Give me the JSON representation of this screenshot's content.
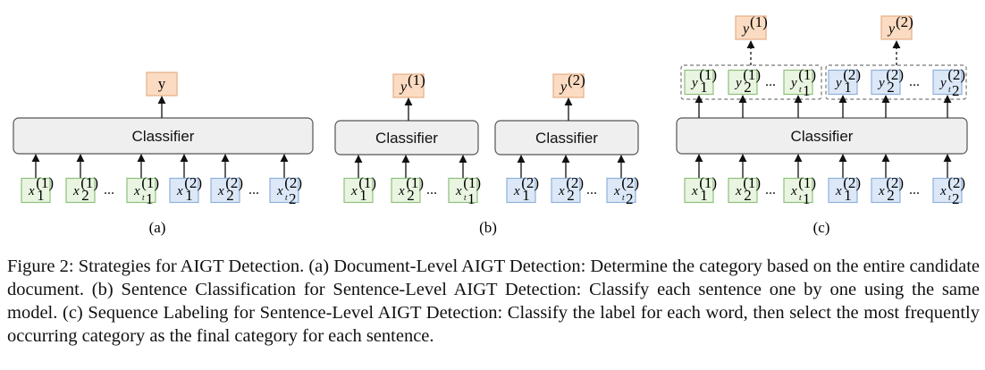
{
  "colors": {
    "green_fill": "#e9f5e1",
    "green_stroke": "#8ec07c",
    "blue_fill": "#dce8f7",
    "blue_stroke": "#8fb1d9",
    "orange_fill": "#fbdcc3",
    "orange_stroke": "#e5ad85",
    "classifier_fill": "#efefef",
    "classifier_stroke": "#555555",
    "group_stroke": "#777777"
  },
  "labels": {
    "classifier": "Classifier",
    "dots": "...",
    "y": "y",
    "y1": "y",
    "y2": "y",
    "sup1": "(1)",
    "sup2": "(2)",
    "x": "x",
    "sub1": "1",
    "sub2": "2",
    "subt": "t",
    "subt1": "1",
    "subt2": "2"
  },
  "panels": {
    "a": "(a)",
    "b": "(b)",
    "c": "(c)"
  },
  "caption": "Figure 2: Strategies for AIGT Detection. (a) Document-Level AIGT Detection: Determine the category based on the entire candidate document. (b) Sentence Classification for Sentence-Level AIGT Detection: Classify each sentence one by one using the same model. (c) Sequence Labeling for Sentence-Level AIGT Detection: Classify the label for each word, then select the most frequently occurring category as the final category for each sentence."
}
